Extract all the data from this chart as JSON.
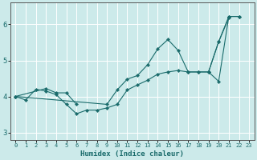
{
  "xlabel": "Humidex (Indice chaleur)",
  "background_color": "#cceaea",
  "grid_color": "#ffffff",
  "line_color": "#1a6b6b",
  "ylim": [
    2.8,
    6.6
  ],
  "xlim": [
    -0.5,
    23.5
  ],
  "yticks": [
    3,
    4,
    5,
    6
  ],
  "xticks": [
    0,
    1,
    2,
    3,
    4,
    5,
    6,
    7,
    8,
    9,
    10,
    11,
    12,
    13,
    14,
    15,
    16,
    17,
    18,
    19,
    20,
    21,
    22,
    23
  ],
  "series": [
    {
      "x": [
        0,
        1,
        2,
        3,
        4,
        5,
        6,
        7,
        8,
        9,
        10,
        11,
        12,
        13,
        14,
        15,
        16,
        17,
        18,
        19,
        20,
        21,
        22
      ],
      "y": [
        4.0,
        3.9,
        4.2,
        4.15,
        4.05,
        3.78,
        3.52,
        3.62,
        3.62,
        3.68,
        3.78,
        4.18,
        4.32,
        4.45,
        4.62,
        4.68,
        4.72,
        4.68,
        4.68,
        4.68,
        4.42,
        6.22,
        6.22
      ]
    },
    {
      "x": [
        0,
        3,
        4,
        5,
        6
      ],
      "y": [
        4.0,
        4.22,
        4.1,
        4.1,
        3.78
      ]
    },
    {
      "x": [
        0,
        9,
        10,
        11,
        12,
        13,
        14,
        15,
        16,
        17,
        18,
        19,
        20,
        21,
        22
      ],
      "y": [
        4.0,
        3.78,
        4.18,
        4.48,
        4.58,
        4.88,
        5.32,
        5.58,
        5.28,
        4.68,
        4.68,
        4.68,
        5.52,
        6.22,
        6.22
      ]
    },
    {
      "x": [
        19,
        20,
        21
      ],
      "y": [
        4.68,
        5.52,
        6.18
      ]
    }
  ]
}
